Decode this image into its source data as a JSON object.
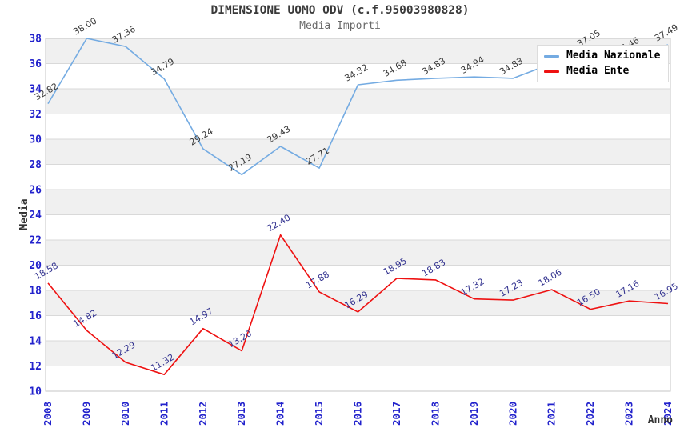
{
  "title": "DIMENSIONE UOMO ODV (c.f.95003980828)",
  "subtitle": "Media Importi",
  "legend": {
    "position": "top-right",
    "items": [
      {
        "label": "Media Nazionale",
        "color": "#74abe2"
      },
      {
        "label": "Media Ente",
        "color": "#ee1111"
      }
    ]
  },
  "axes": {
    "x_label": "Anno",
    "y_label": "Media",
    "x_ticks": [
      "2008",
      "2009",
      "2010",
      "2011",
      "2012",
      "2013",
      "2014",
      "2015",
      "2016",
      "2017",
      "2018",
      "2019",
      "2020",
      "2021",
      "2022",
      "2023",
      "2024"
    ],
    "y_ticks": [
      10,
      12,
      14,
      16,
      18,
      20,
      22,
      24,
      26,
      28,
      30,
      32,
      34,
      36,
      38
    ],
    "tick_color": "#2222cc",
    "axis_title_color": "#333333"
  },
  "chart_data": {
    "type": "line",
    "title": "DIMENSIONE UOMO ODV (c.f.95003980828)",
    "subtitle": "Media Importi",
    "xlabel": "Anno",
    "ylabel": "Media",
    "ylim": [
      10,
      38
    ],
    "grid": "horizontal",
    "band_fill": "#f0f0f0",
    "gridline_color": "#d9d9d9",
    "border_color": "#c4c4c4",
    "legend_position": "top-right",
    "x": [
      2008,
      2009,
      2010,
      2011,
      2012,
      2013,
      2014,
      2015,
      2016,
      2017,
      2018,
      2019,
      2020,
      2021,
      2022,
      2023,
      2024
    ],
    "series": [
      {
        "name": "Media Nazionale",
        "color": "#74abe2",
        "label_color": "#3a3a3a",
        "values": [
          32.82,
          38.0,
          37.36,
          34.79,
          29.24,
          27.19,
          29.43,
          27.71,
          34.32,
          34.68,
          34.83,
          34.94,
          34.83,
          36.0,
          37.05,
          36.46,
          37.49
        ],
        "labels": [
          "32.82",
          "38.00",
          "37.36",
          "34.79",
          "29.24",
          "27.19",
          "29.43",
          "27.71",
          "34.32",
          "34.68",
          "34.83",
          "34.94",
          "34.83",
          "",
          "37.05",
          "36.46",
          "37.49"
        ]
      },
      {
        "name": "Media Ente",
        "color": "#ee1111",
        "label_color": "#333390",
        "values": [
          18.58,
          14.82,
          12.29,
          11.32,
          14.97,
          13.2,
          22.4,
          17.88,
          16.29,
          18.95,
          18.83,
          17.32,
          17.23,
          18.06,
          16.5,
          17.16,
          16.95
        ],
        "labels": [
          "18.58",
          "14.82",
          "12.29",
          "11.32",
          "14.97",
          "13.20",
          "22.40",
          "17.88",
          "16.29",
          "18.95",
          "18.83",
          "17.32",
          "17.23",
          "18.06",
          "16.50",
          "17.16",
          "16.95"
        ]
      }
    ]
  }
}
